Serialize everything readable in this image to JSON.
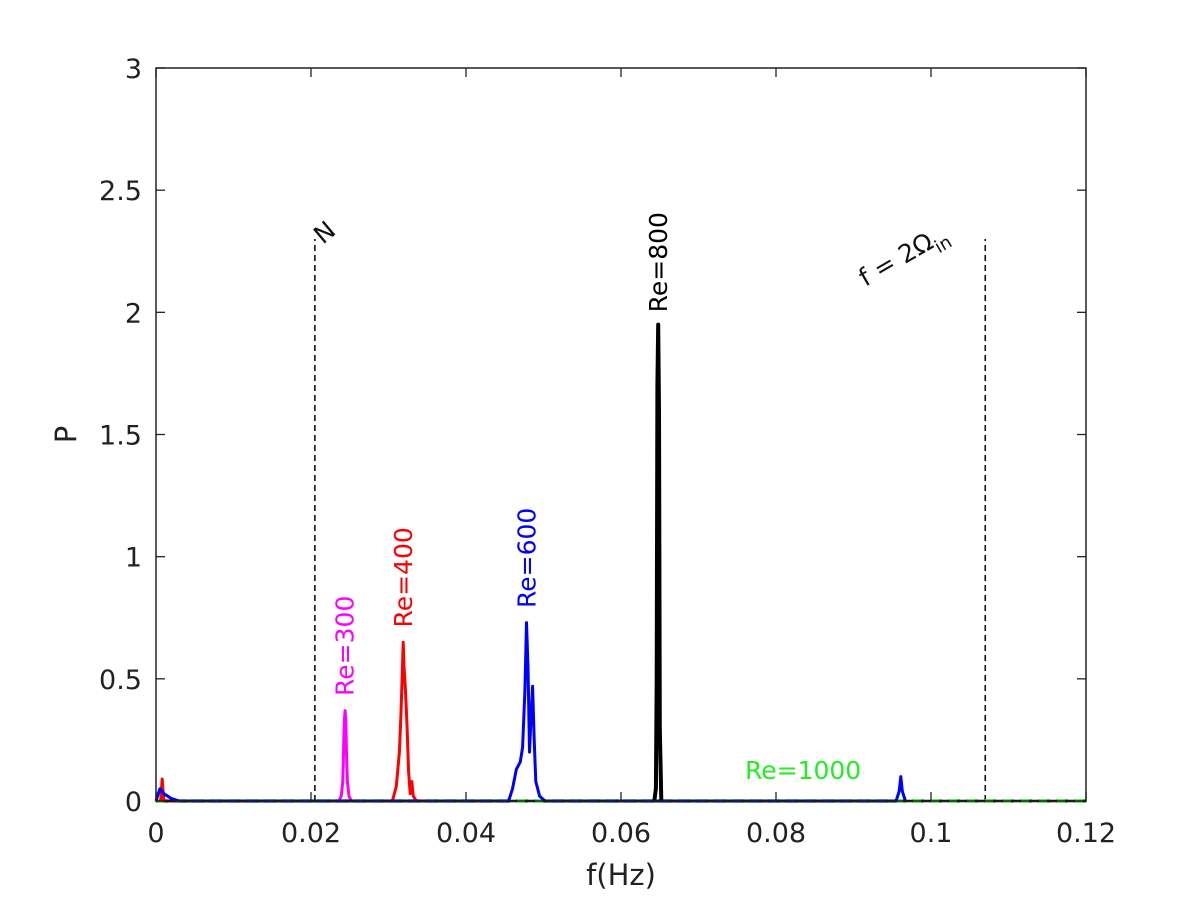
{
  "chart_data": {
    "type": "line",
    "title": "",
    "xlabel": "f(Hz)",
    "ylabel": "P",
    "xlim": [
      0,
      0.12
    ],
    "ylim": [
      0,
      3
    ],
    "xticks": [
      0,
      0.02,
      0.04,
      0.06,
      0.08,
      0.1,
      0.12
    ],
    "xtick_labels": [
      "0",
      "0.02",
      "0.04",
      "0.06",
      "0.08",
      "0.1",
      "0.12"
    ],
    "yticks": [
      0,
      0.5,
      1,
      1.5,
      2,
      2.5,
      3
    ],
    "ytick_labels": [
      "0",
      "0.5",
      "1",
      "1.5",
      "2",
      "2.5",
      "3"
    ],
    "grid": false,
    "series": [
      {
        "name": "Re=300",
        "color": "#ff00ff",
        "x": [
          0.0236,
          0.0239,
          0.0241,
          0.0242,
          0.0243,
          0.0244,
          0.0245,
          0.0246,
          0.0247,
          0.0249,
          0.0252
        ],
        "y": [
          0.0,
          0.02,
          0.08,
          0.2,
          0.33,
          0.37,
          0.32,
          0.18,
          0.08,
          0.02,
          0.0
        ]
      },
      {
        "name": "Re=400",
        "color": "#ff0000",
        "x": [
          0.0006,
          0.0008,
          0.001,
          0.0014,
          0.0305,
          0.031,
          0.0314,
          0.0316,
          0.0318,
          0.0319,
          0.032,
          0.0322,
          0.0324,
          0.0326,
          0.0328,
          0.033,
          0.0332,
          0.0336
        ],
        "y": [
          0.0,
          0.09,
          0.0,
          0.0,
          0.0,
          0.06,
          0.2,
          0.35,
          0.55,
          0.65,
          0.55,
          0.45,
          0.3,
          0.12,
          0.03,
          0.08,
          0.02,
          0.0
        ]
      },
      {
        "name": "Re=600",
        "color": "#0000ff",
        "x": [
          0.0,
          0.0005,
          0.001,
          0.002,
          0.003,
          0.0455,
          0.046,
          0.0465,
          0.047,
          0.0473,
          0.0476,
          0.0478,
          0.048,
          0.0482,
          0.0484,
          0.0486,
          0.0488,
          0.049,
          0.0495,
          0.0502,
          0.0955,
          0.0959,
          0.0961,
          0.0963,
          0.0967
        ],
        "y": [
          0.0,
          0.05,
          0.03,
          0.01,
          0.0,
          0.0,
          0.05,
          0.13,
          0.16,
          0.22,
          0.45,
          0.73,
          0.55,
          0.2,
          0.35,
          0.47,
          0.25,
          0.08,
          0.02,
          0.0,
          0.0,
          0.04,
          0.1,
          0.04,
          0.0
        ]
      },
      {
        "name": "Re=800",
        "color": "#000000",
        "x": [
          0.0643,
          0.0645,
          0.0646,
          0.0647,
          0.0648,
          0.0649,
          0.065,
          0.0652
        ],
        "y": [
          0.0,
          0.05,
          0.5,
          1.7,
          1.95,
          1.6,
          0.3,
          0.0
        ]
      },
      {
        "name": "Re=1000",
        "color": "#22ee22",
        "x": [
          0.0,
          0.12
        ],
        "y": [
          0.0,
          0.0
        ]
      }
    ],
    "reference_lines": [
      {
        "label": "N",
        "x": 0.0205,
        "y_top": 2.3
      },
      {
        "label": "f = 2Ω",
        "label_sub": "in",
        "x": 0.107,
        "y_top": 2.3
      }
    ],
    "annotations": [
      {
        "text": "Re=300",
        "color": "#ff00ff",
        "x": 0.0243,
        "y": 0.43,
        "rotation": -90
      },
      {
        "text": "Re=400",
        "color": "#ff0000",
        "x": 0.0319,
        "y": 0.71,
        "rotation": -90
      },
      {
        "text": "Re=600",
        "color": "#0000ff",
        "x": 0.0478,
        "y": 0.79,
        "rotation": -90
      },
      {
        "text": "Re=800",
        "color": "#000000",
        "x": 0.0648,
        "y": 2.0,
        "rotation": -90
      },
      {
        "text": "Re=1000",
        "color": "#22ee22",
        "x": 0.0835,
        "y": 0.09,
        "rotation": 0
      }
    ]
  }
}
